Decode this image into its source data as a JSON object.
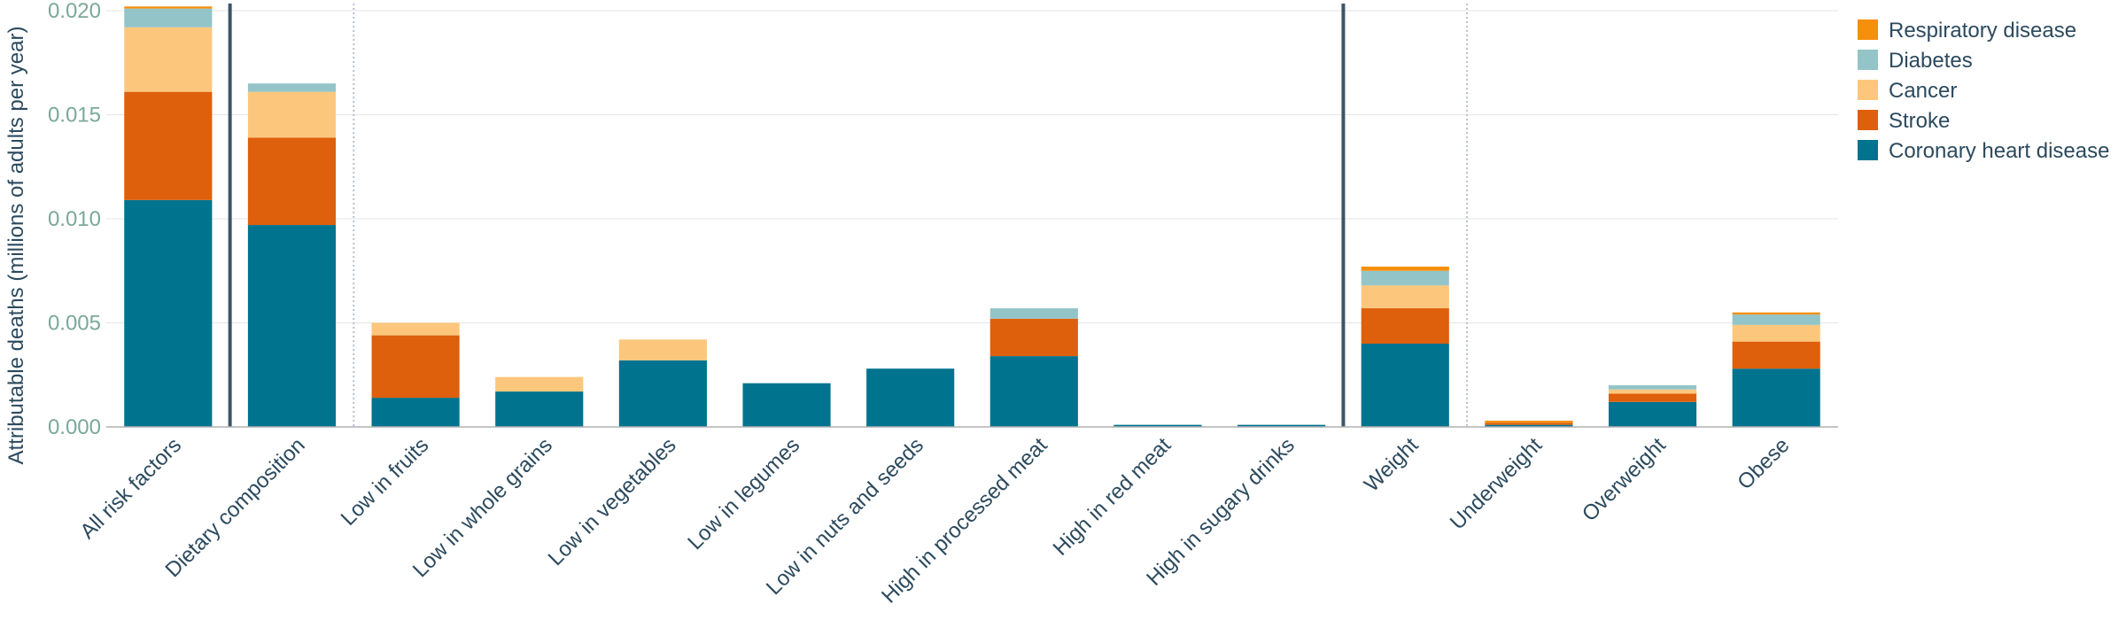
{
  "chart_data": {
    "type": "bar",
    "stacked": true,
    "ylabel": "Attributable deaths (millions of adults per year)",
    "xlabel": "",
    "title": "",
    "ylim": [
      0,
      0.02
    ],
    "yticks": [
      "0.000",
      "0.005",
      "0.010",
      "0.015",
      "0.020"
    ],
    "ytick_values": [
      0,
      0.005,
      0.01,
      0.015,
      0.02
    ],
    "grid": true,
    "legend_position": "top-right",
    "categories": [
      "All risk factors",
      "Dietary composition",
      "Low in fruits",
      "Low in whole grains",
      "Low in vegetables",
      "Low in legumes",
      "Low in nuts and seeds",
      "High in processed meat",
      "High in red meat",
      "High in sugary drinks",
      "Weight",
      "Underweight",
      "Overweight",
      "Obese"
    ],
    "series": [
      {
        "name": "Coronary heart disease",
        "color": "#00738f",
        "values": [
          0.0109,
          0.0097,
          0.0014,
          0.0017,
          0.0032,
          0.0021,
          0.0028,
          0.0034,
          0.0001,
          0.0001,
          0.004,
          0.0001,
          0.0012,
          0.0028
        ]
      },
      {
        "name": "Stroke",
        "color": "#de5f0c",
        "values": [
          0.0052,
          0.0042,
          0.003,
          0.0,
          0.0,
          0.0,
          0.0,
          0.0018,
          0.0,
          0.0,
          0.0017,
          0.0001,
          0.0004,
          0.0013
        ]
      },
      {
        "name": "Cancer",
        "color": "#fcc77d",
        "values": [
          0.0031,
          0.0022,
          0.0006,
          0.0007,
          0.001,
          0.0,
          0.0,
          0.0,
          0.0,
          0.0,
          0.0011,
          0.0,
          0.0002,
          0.0008
        ]
      },
      {
        "name": "Diabetes",
        "color": "#93c5c8",
        "values": [
          0.0009,
          0.0004,
          0.0,
          0.0,
          0.0,
          0.0,
          0.0,
          0.0005,
          0.0,
          0.0,
          0.0007,
          0.0,
          0.0002,
          0.0005
        ]
      },
      {
        "name": "Respiratory disease",
        "color": "#f58f0c",
        "values": [
          0.0001,
          0.0,
          0.0,
          0.0,
          0.0,
          0.0,
          0.0,
          0.0,
          0.0,
          0.0,
          0.0002,
          0.0001,
          0.0,
          0.0001
        ]
      }
    ],
    "legend_order": [
      "Respiratory disease",
      "Diabetes",
      "Cancer",
      "Stroke",
      "Coronary heart disease"
    ],
    "group_separators": [
      {
        "after_category": "All risk factors",
        "style": "solid"
      },
      {
        "after_category": "Dietary composition",
        "style": "dotted"
      },
      {
        "after_category": "High in sugary drinks",
        "style": "solid"
      },
      {
        "after_category": "Weight",
        "style": "dotted"
      }
    ],
    "colors": {
      "tick_label": "#7aa89b",
      "text": "#2c4a5e",
      "gridline": "#e6e6e6",
      "axis_line": "#b0b0b0",
      "separator_solid": "#3d5566",
      "separator_dotted": "#b9bfd0"
    }
  }
}
